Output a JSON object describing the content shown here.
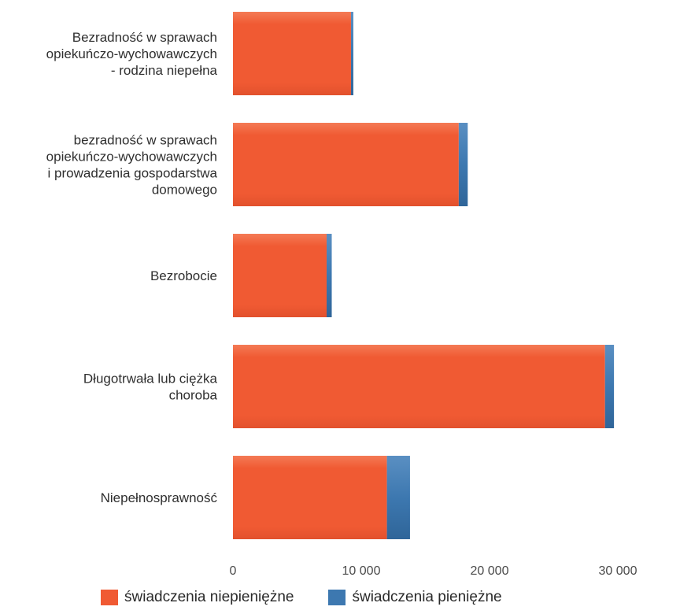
{
  "colors": {
    "niepieniezne": "#f05a33",
    "pieniezne": "#3d78b0",
    "axis_text": "#4a4a4a"
  },
  "chart_data": {
    "type": "bar",
    "orientation": "horizontal",
    "stacked": true,
    "categories": [
      [
        "Bezradność w sprawach",
        "opiekuńczo-wychowawczych",
        "- rodzina niepełna"
      ],
      [
        "bezradność w sprawach",
        "opiekuńczo-wychowawczych",
        "i prowadzenia gospodarstwa",
        "domowego"
      ],
      [
        "Bezrobocie"
      ],
      [
        "Długotrwała lub ciężka",
        "choroba"
      ],
      [
        "Niepełnosprawność"
      ]
    ],
    "series": [
      {
        "name": "świadczenia niepieniężne",
        "values": [
          9200,
          17600,
          7300,
          29000,
          12000
        ]
      },
      {
        "name": "świadczenia pieniężne",
        "values": [
          150,
          700,
          400,
          700,
          1800
        ]
      }
    ],
    "x_ticks": [
      "0",
      "10 000",
      "20 000",
      "30 000"
    ],
    "x_tick_values": [
      0,
      10000,
      20000,
      30000
    ],
    "xlim": [
      0,
      33000
    ],
    "grid": false,
    "legend_position": "bottom"
  }
}
